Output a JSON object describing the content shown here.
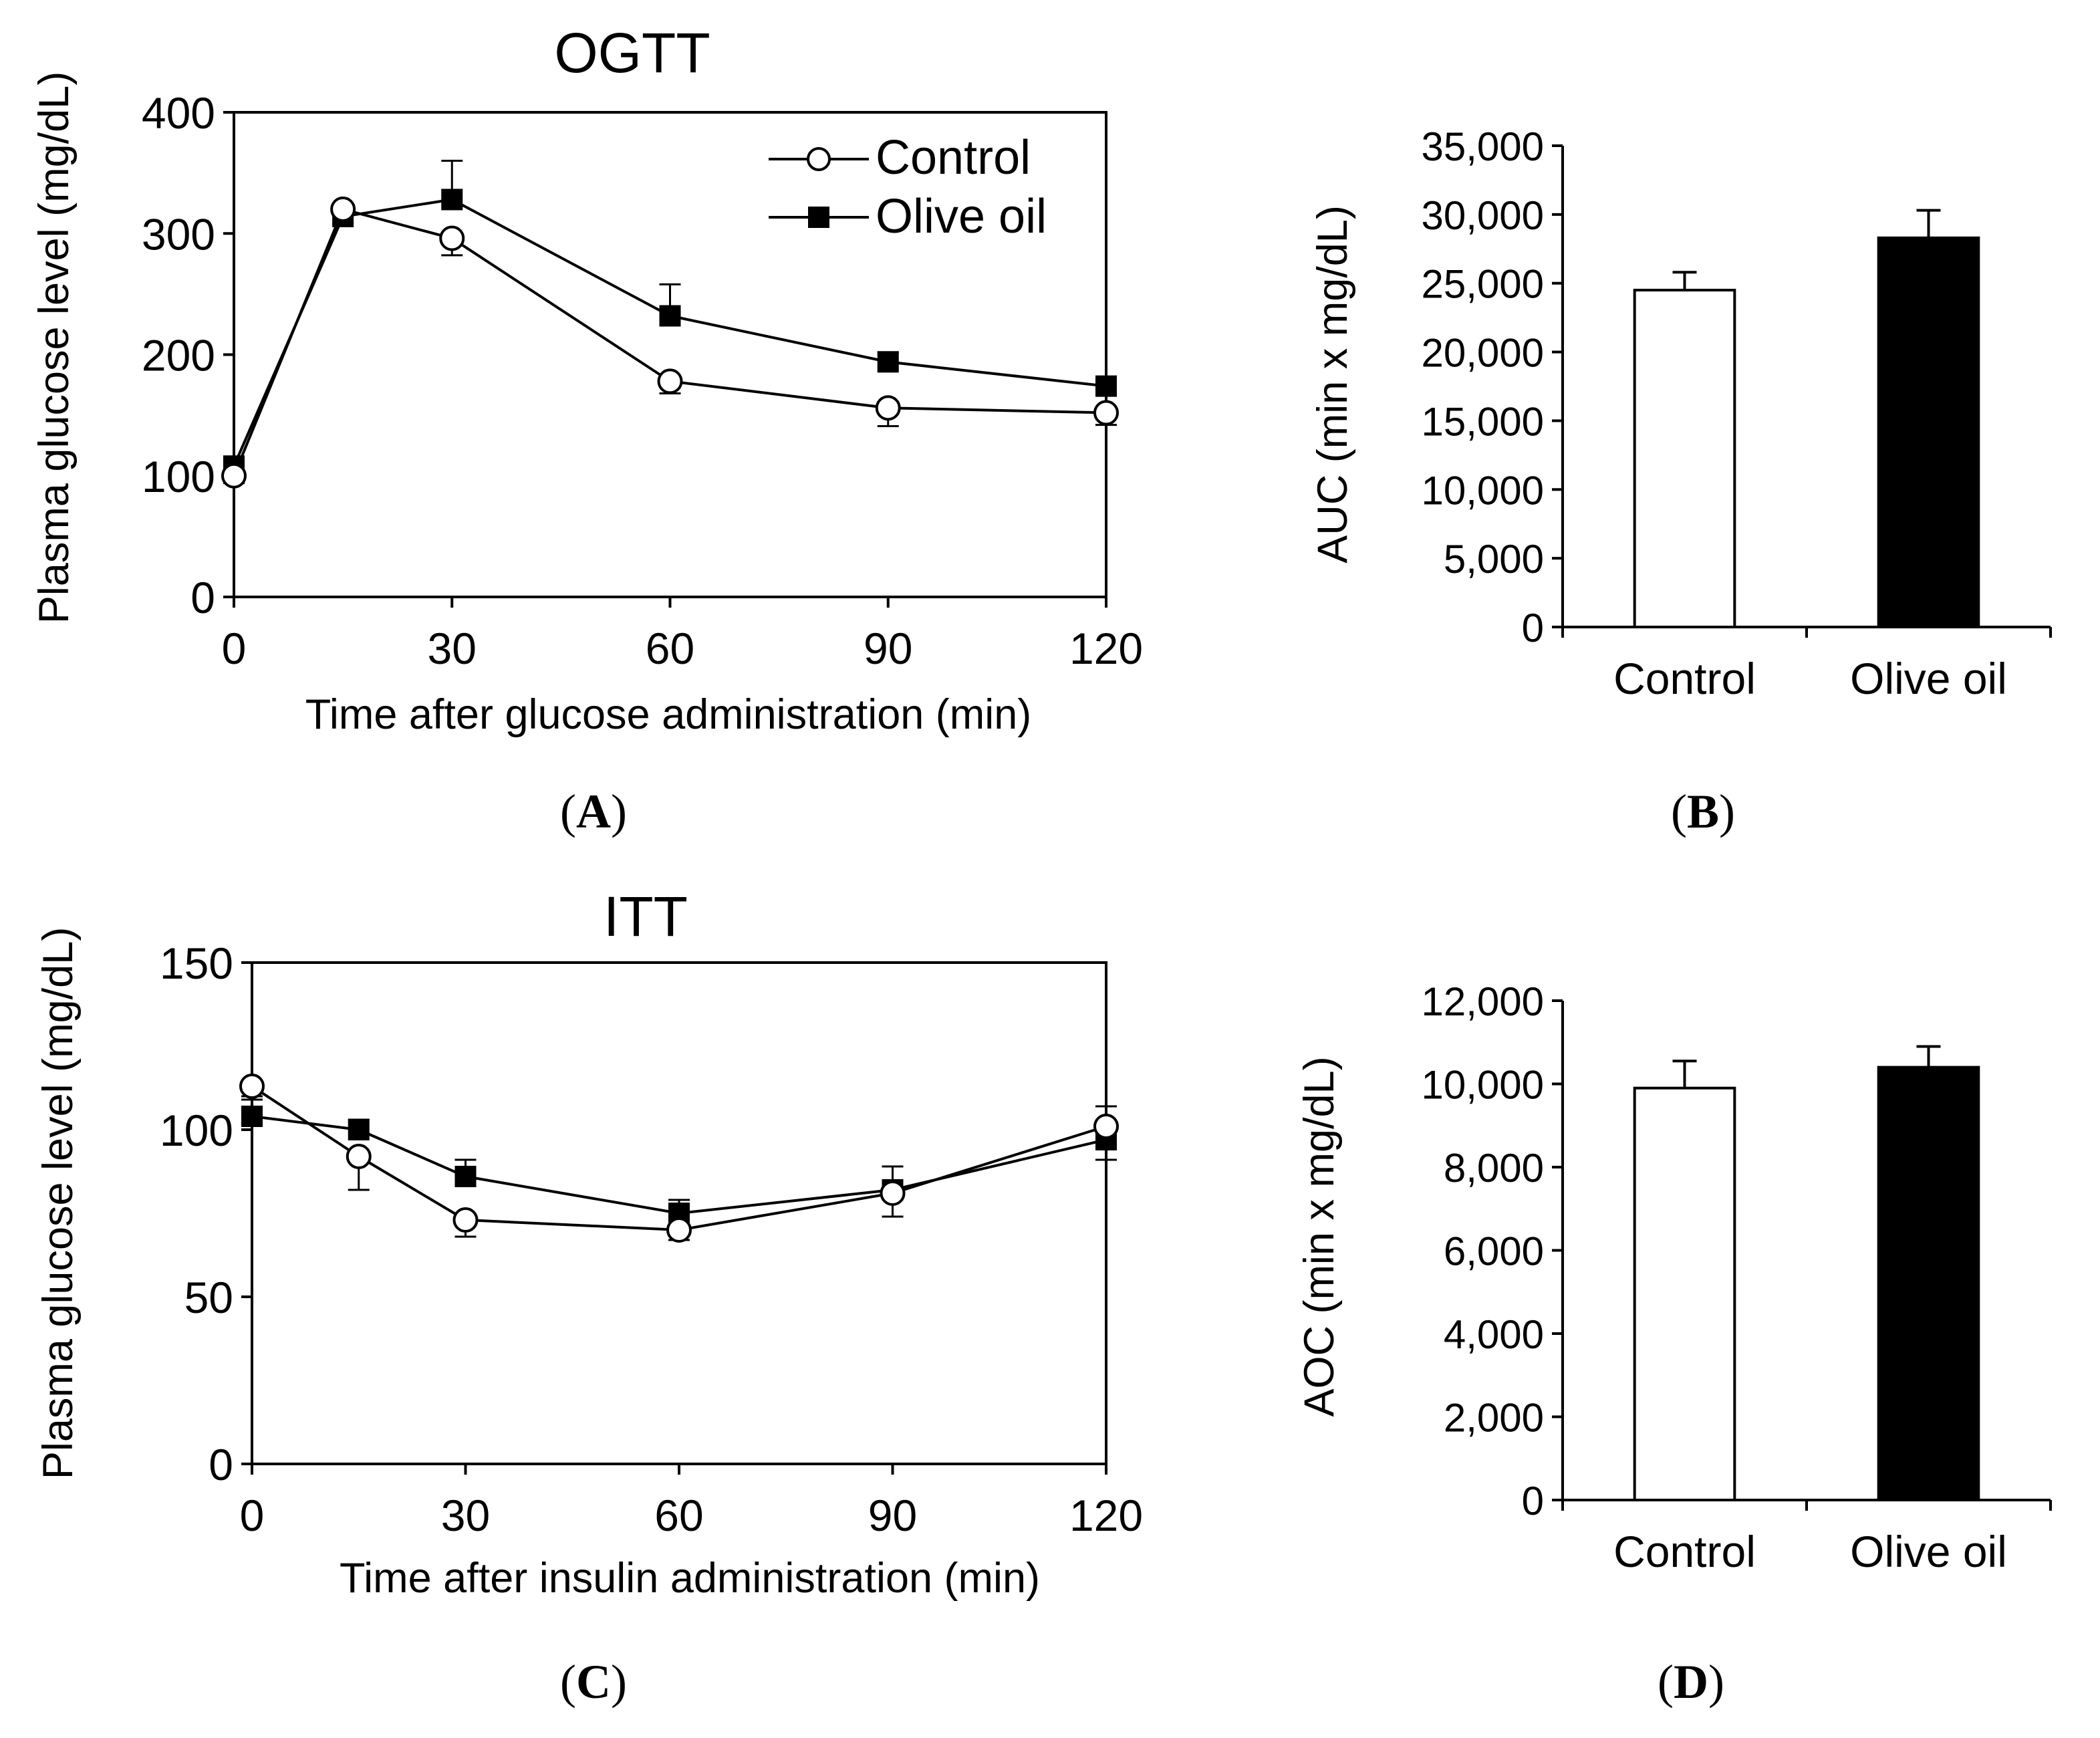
{
  "colors": {
    "ink": "#000000",
    "background": "#ffffff",
    "control_fill": "#ffffff",
    "olive_fill": "#000000"
  },
  "chart_data": [
    {
      "id": "A",
      "type": "line",
      "title": "OGTT",
      "panel_label": "(A)",
      "panel_letter": "A",
      "xlabel": "Time after glucose administration (min)",
      "ylabel": "Plasma glucose level (mg/dL)",
      "x": [
        0,
        15,
        30,
        60,
        90,
        120
      ],
      "xticks": [
        0,
        30,
        60,
        90,
        120
      ],
      "yticks": [
        0,
        100,
        200,
        300,
        400
      ],
      "xlim": [
        0,
        120
      ],
      "ylim": [
        0,
        400
      ],
      "legend_position": "top-right",
      "series": [
        {
          "name": "Control",
          "marker": "open-circle",
          "values": [
            100,
            320,
            296,
            178,
            156,
            152
          ],
          "errors": [
            6,
            12,
            14,
            10,
            15,
            10
          ]
        },
        {
          "name": "Olive oil",
          "marker": "filled-square",
          "values": [
            108,
            314,
            328,
            232,
            194,
            174
          ],
          "errors": [
            6,
            8,
            32,
            26,
            8,
            6
          ]
        }
      ]
    },
    {
      "id": "B",
      "type": "bar",
      "panel_label": "(B)",
      "panel_letter": "B",
      "ylabel": "AUC (min x mg/dL)",
      "categories": [
        "Control",
        "Olive oil"
      ],
      "values": [
        24500,
        28300
      ],
      "errors": [
        1300,
        2000
      ],
      "bar_fills": [
        "#ffffff",
        "#000000"
      ],
      "yticks": [
        0,
        5000,
        10000,
        15000,
        20000,
        25000,
        30000,
        35000
      ],
      "ytick_labels": [
        "0",
        "5,000",
        "10,000",
        "15,000",
        "20,000",
        "25,000",
        "30,000",
        "35,000"
      ],
      "ylim": [
        0,
        35000
      ]
    },
    {
      "id": "C",
      "type": "line",
      "title": "ITT",
      "panel_label": "(C)",
      "panel_letter": "C",
      "xlabel": "Time after insulin administration (min)",
      "ylabel": "Plasma glucose level (mg/dL)",
      "x": [
        0,
        15,
        30,
        60,
        90,
        120
      ],
      "xticks": [
        0,
        30,
        60,
        90,
        120
      ],
      "yticks": [
        0,
        50,
        100,
        150
      ],
      "xlim": [
        0,
        120
      ],
      "ylim": [
        0,
        150
      ],
      "series": [
        {
          "name": "Control",
          "marker": "open-circle",
          "values": [
            113,
            92,
            73,
            70,
            81,
            101
          ],
          "errors": [
            3,
            10,
            5,
            3,
            7,
            10
          ]
        },
        {
          "name": "Olive oil",
          "marker": "filled-square",
          "values": [
            104,
            100,
            86,
            75,
            82,
            97
          ],
          "errors": [
            5,
            3,
            5,
            4,
            7,
            10
          ]
        }
      ]
    },
    {
      "id": "D",
      "type": "bar",
      "panel_label": "(D)",
      "panel_letter": "D",
      "ylabel": "AOC (min x mg/dL)",
      "categories": [
        "Control",
        "Olive oil"
      ],
      "values": [
        9900,
        10400
      ],
      "errors": [
        650,
        500
      ],
      "bar_fills": [
        "#ffffff",
        "#000000"
      ],
      "yticks": [
        0,
        2000,
        4000,
        6000,
        8000,
        10000,
        12000
      ],
      "ytick_labels": [
        "0",
        "2,000",
        "4,000",
        "6,000",
        "8,000",
        "10,000",
        "12,000"
      ],
      "ylim": [
        0,
        12000
      ]
    }
  ]
}
